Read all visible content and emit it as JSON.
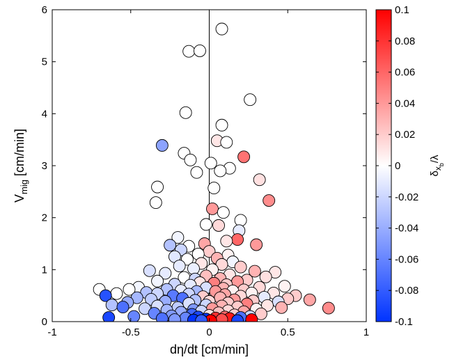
{
  "chart_data": {
    "type": "scatter",
    "title": "",
    "xlabel": "dη/dt [cm/min]",
    "ylabel_main": "V",
    "ylabel_sub": "mig",
    "ylabel_unit": " [cm/min]",
    "colorbar_label_main": "δ",
    "colorbar_label_sub": "x",
    "colorbar_label_subsub": "b",
    "colorbar_label_tail": "/λ",
    "xlim": [
      -1,
      1
    ],
    "ylim": [
      0,
      6
    ],
    "clim": [
      -0.1,
      0.1
    ],
    "xticks": [
      -1,
      -0.5,
      0,
      0.5,
      1
    ],
    "xtick_labels": [
      "-1",
      "-0.5",
      "0",
      "0.5",
      "1"
    ],
    "yticks": [
      0,
      1,
      2,
      3,
      4,
      5,
      6
    ],
    "ytick_labels": [
      "0",
      "1",
      "2",
      "3",
      "4",
      "5",
      "6"
    ],
    "cticks": [
      -0.1,
      -0.08,
      -0.06,
      -0.04,
      -0.02,
      0,
      0.02,
      0.04,
      0.06,
      0.08,
      0.1
    ],
    "ctick_labels": [
      "-0.1",
      "-0.08",
      "-0.06",
      "-0.04",
      "-0.02",
      "0",
      "0.02",
      "0.04",
      "0.06",
      "0.08",
      "0.1"
    ],
    "colormap": [
      "#0033ff",
      "#ffffff",
      "#ff0000"
    ],
    "vertical_line_x": 0,
    "grid": false,
    "points": [
      {
        "x": 0.08,
        "y": 5.63,
        "c": 0
      },
      {
        "x": -0.13,
        "y": 5.2,
        "c": 0
      },
      {
        "x": -0.06,
        "y": 5.21,
        "c": 0
      },
      {
        "x": 0.26,
        "y": 4.27,
        "c": 0
      },
      {
        "x": -0.15,
        "y": 4.02,
        "c": 0
      },
      {
        "x": 0.08,
        "y": 3.78,
        "c": 0
      },
      {
        "x": 0.05,
        "y": 3.48,
        "c": 0.01
      },
      {
        "x": 0.11,
        "y": 3.45,
        "c": 0
      },
      {
        "x": -0.3,
        "y": 3.39,
        "c": -0.045
      },
      {
        "x": -0.16,
        "y": 3.24,
        "c": 0
      },
      {
        "x": -0.12,
        "y": 3.11,
        "c": 0
      },
      {
        "x": 0.22,
        "y": 3.17,
        "c": 0.055
      },
      {
        "x": 0.01,
        "y": 3.05,
        "c": 0
      },
      {
        "x": 0.13,
        "y": 2.95,
        "c": 0
      },
      {
        "x": 0.07,
        "y": 2.9,
        "c": 0
      },
      {
        "x": -0.08,
        "y": 2.87,
        "c": 0
      },
      {
        "x": 0.32,
        "y": 2.73,
        "c": 0.012
      },
      {
        "x": -0.33,
        "y": 2.59,
        "c": 0
      },
      {
        "x": 0.03,
        "y": 2.57,
        "c": 0
      },
      {
        "x": 0.38,
        "y": 2.33,
        "c": 0.045
      },
      {
        "x": -0.34,
        "y": 2.29,
        "c": 0
      },
      {
        "x": 0.02,
        "y": 2.17,
        "c": 0.04
      },
      {
        "x": 0.09,
        "y": 2.1,
        "c": 0
      },
      {
        "x": 0.2,
        "y": 1.95,
        "c": 0
      },
      {
        "x": -0.02,
        "y": 1.87,
        "c": 0
      },
      {
        "x": 0.06,
        "y": 1.85,
        "c": 0.015
      },
      {
        "x": 0.19,
        "y": 1.75,
        "c": -0.01
      },
      {
        "x": -0.2,
        "y": 1.62,
        "c": -0.005
      },
      {
        "x": 0.18,
        "y": 1.58,
        "c": 0.06
      },
      {
        "x": 0.11,
        "y": 1.55,
        "c": 0.01
      },
      {
        "x": -0.03,
        "y": 1.5,
        "c": 0.035
      },
      {
        "x": 0.3,
        "y": 1.48,
        "c": 0.04
      },
      {
        "x": -0.25,
        "y": 1.47,
        "c": -0.03
      },
      {
        "x": -0.13,
        "y": 1.45,
        "c": 0
      },
      {
        "x": -0.18,
        "y": 1.38,
        "c": -0.02
      },
      {
        "x": 0.0,
        "y": 1.35,
        "c": 0.02
      },
      {
        "x": -0.07,
        "y": 1.3,
        "c": 0
      },
      {
        "x": 0.12,
        "y": 1.28,
        "c": 0.005
      },
      {
        "x": -0.22,
        "y": 1.25,
        "c": -0.012
      },
      {
        "x": 0.05,
        "y": 1.22,
        "c": 0.03
      },
      {
        "x": -0.14,
        "y": 1.2,
        "c": 0
      },
      {
        "x": 0.15,
        "y": 1.15,
        "c": -0.005
      },
      {
        "x": -0.05,
        "y": 1.12,
        "c": 0.01
      },
      {
        "x": 0.08,
        "y": 1.1,
        "c": 0.015
      },
      {
        "x": -0.19,
        "y": 1.07,
        "c": -0.01
      },
      {
        "x": 0.2,
        "y": 1.05,
        "c": 0.02
      },
      {
        "x": -0.1,
        "y": 1.02,
        "c": -0.008
      },
      {
        "x": 0.02,
        "y": 1.0,
        "c": 0.005
      },
      {
        "x": -0.38,
        "y": 0.98,
        "c": -0.015
      },
      {
        "x": 0.29,
        "y": 0.97,
        "c": 0.03
      },
      {
        "x": 0.42,
        "y": 0.95,
        "c": 0.01
      },
      {
        "x": -0.28,
        "y": 0.93,
        "c": -0.01
      },
      {
        "x": 0.13,
        "y": 0.9,
        "c": 0.01
      },
      {
        "x": -0.02,
        "y": 0.88,
        "c": 0.025
      },
      {
        "x": 0.36,
        "y": 0.86,
        "c": 0.012
      },
      {
        "x": -0.16,
        "y": 0.85,
        "c": 0
      },
      {
        "x": 0.07,
        "y": 0.83,
        "c": 0.03
      },
      {
        "x": -0.09,
        "y": 0.82,
        "c": -0.02
      },
      {
        "x": 0.24,
        "y": 0.8,
        "c": 0.02
      },
      {
        "x": -0.33,
        "y": 0.78,
        "c": -0.005
      },
      {
        "x": 0.18,
        "y": 0.77,
        "c": 0.04
      },
      {
        "x": -0.06,
        "y": 0.75,
        "c": 0.01
      },
      {
        "x": 0.03,
        "y": 0.74,
        "c": 0.05
      },
      {
        "x": -0.22,
        "y": 0.72,
        "c": -0.02
      },
      {
        "x": 0.11,
        "y": 0.71,
        "c": 0.02
      },
      {
        "x": -0.12,
        "y": 0.7,
        "c": -0.01
      },
      {
        "x": 0.48,
        "y": 0.68,
        "c": 0.005
      },
      {
        "x": -0.45,
        "y": 0.66,
        "c": -0.005
      },
      {
        "x": 0.32,
        "y": 0.66,
        "c": 0.015
      },
      {
        "x": -0.02,
        "y": 0.65,
        "c": -0.015
      },
      {
        "x": 0.09,
        "y": 0.64,
        "c": 0.03
      },
      {
        "x": -0.7,
        "y": 0.62,
        "c": 0
      },
      {
        "x": -0.51,
        "y": 0.62,
        "c": 0
      },
      {
        "x": -0.27,
        "y": 0.62,
        "c": -0.03
      },
      {
        "x": 0.22,
        "y": 0.61,
        "c": 0.02
      },
      {
        "x": -0.18,
        "y": 0.6,
        "c": -0.01
      },
      {
        "x": 0.15,
        "y": 0.59,
        "c": 0.005
      },
      {
        "x": -0.08,
        "y": 0.58,
        "c": -0.035
      },
      {
        "x": 0.04,
        "y": 0.58,
        "c": 0.04
      },
      {
        "x": -0.4,
        "y": 0.56,
        "c": -0.03
      },
      {
        "x": 0.41,
        "y": 0.55,
        "c": 0.01
      },
      {
        "x": 0.27,
        "y": 0.55,
        "c": 0.005
      },
      {
        "x": -0.59,
        "y": 0.54,
        "c": 0
      },
      {
        "x": -0.33,
        "y": 0.54,
        "c": -0.02
      },
      {
        "x": -0.13,
        "y": 0.53,
        "c": -0.02
      },
      {
        "x": 0.1,
        "y": 0.52,
        "c": 0.035
      },
      {
        "x": -0.66,
        "y": 0.5,
        "c": -0.085
      },
      {
        "x": 0.55,
        "y": 0.5,
        "c": 0.02
      },
      {
        "x": -0.23,
        "y": 0.5,
        "c": -0.065
      },
      {
        "x": 0.2,
        "y": 0.49,
        "c": 0.015
      },
      {
        "x": -0.04,
        "y": 0.48,
        "c": 0.02
      },
      {
        "x": 0.35,
        "y": 0.47,
        "c": -0.01
      },
      {
        "x": -0.46,
        "y": 0.46,
        "c": -0.035
      },
      {
        "x": 0.07,
        "y": 0.46,
        "c": 0.03
      },
      {
        "x": -0.17,
        "y": 0.45,
        "c": -0.07
      },
      {
        "x": 0.5,
        "y": 0.44,
        "c": 0.02
      },
      {
        "x": -0.37,
        "y": 0.43,
        "c": -0.025
      },
      {
        "x": 0.64,
        "y": 0.42,
        "c": 0.035
      },
      {
        "x": 0.16,
        "y": 0.42,
        "c": 0.04
      },
      {
        "x": -0.09,
        "y": 0.41,
        "c": -0.03
      },
      {
        "x": 0.28,
        "y": 0.4,
        "c": 0.02
      },
      {
        "x": -0.28,
        "y": 0.39,
        "c": -0.04
      },
      {
        "x": 0.0,
        "y": 0.39,
        "c": 0.015
      },
      {
        "x": 0.44,
        "y": 0.38,
        "c": -0.015
      },
      {
        "x": -0.52,
        "y": 0.37,
        "c": -0.04
      },
      {
        "x": 0.12,
        "y": 0.36,
        "c": 0.02
      },
      {
        "x": -0.13,
        "y": 0.35,
        "c": -0.015
      },
      {
        "x": 0.24,
        "y": 0.34,
        "c": 0.05
      },
      {
        "x": -0.62,
        "y": 0.32,
        "c": -0.03
      },
      {
        "x": -0.02,
        "y": 0.32,
        "c": -0.02
      },
      {
        "x": 0.37,
        "y": 0.31,
        "c": 0.01
      },
      {
        "x": -0.33,
        "y": 0.3,
        "c": -0.015
      },
      {
        "x": 0.08,
        "y": 0.3,
        "c": 0.03
      },
      {
        "x": -0.55,
        "y": 0.28,
        "c": -0.07
      },
      {
        "x": 0.18,
        "y": 0.28,
        "c": 0.02
      },
      {
        "x": -0.2,
        "y": 0.27,
        "c": -0.025
      },
      {
        "x": 0.46,
        "y": 0.27,
        "c": 0.03
      },
      {
        "x": 0.76,
        "y": 0.26,
        "c": 0.045
      },
      {
        "x": -0.41,
        "y": 0.25,
        "c": -0.02
      },
      {
        "x": 0.02,
        "y": 0.25,
        "c": 0.04
      },
      {
        "x": 0.3,
        "y": 0.24,
        "c": 0.005
      },
      {
        "x": -0.1,
        "y": 0.23,
        "c": -0.05
      },
      {
        "x": -0.27,
        "y": 0.22,
        "c": -0.035
      },
      {
        "x": 0.12,
        "y": 0.21,
        "c": 0.015
      },
      {
        "x": -0.05,
        "y": 0.2,
        "c": -0.02
      },
      {
        "x": 0.22,
        "y": 0.19,
        "c": 0.035
      },
      {
        "x": -0.18,
        "y": 0.18,
        "c": -0.04
      },
      {
        "x": 0.06,
        "y": 0.17,
        "c": 0.025
      },
      {
        "x": -0.35,
        "y": 0.16,
        "c": -0.06
      },
      {
        "x": 0.33,
        "y": 0.15,
        "c": 0.02
      },
      {
        "x": -0.11,
        "y": 0.14,
        "c": -0.075
      },
      {
        "x": 0.16,
        "y": 0.13,
        "c": 0.02
      },
      {
        "x": 0.0,
        "y": 0.12,
        "c": 0.01
      },
      {
        "x": -0.24,
        "y": 0.11,
        "c": -0.05
      },
      {
        "x": -0.48,
        "y": 0.1,
        "c": -0.06
      },
      {
        "x": 0.26,
        "y": 0.1,
        "c": -0.02
      },
      {
        "x": 0.1,
        "y": 0.09,
        "c": 0.06
      },
      {
        "x": -0.07,
        "y": 0.09,
        "c": -0.09
      },
      {
        "x": -0.64,
        "y": 0.08,
        "c": -0.09
      },
      {
        "x": 0.2,
        "y": 0.08,
        "c": -0.07
      },
      {
        "x": -0.15,
        "y": 0.07,
        "c": -0.06
      },
      {
        "x": 0.04,
        "y": 0.07,
        "c": 0.08
      },
      {
        "x": 0.13,
        "y": 0.06,
        "c": 0.09
      },
      {
        "x": -0.3,
        "y": 0.06,
        "c": -0.07
      },
      {
        "x": -0.02,
        "y": 0.05,
        "c": -0.1
      },
      {
        "x": 0.27,
        "y": 0.04,
        "c": 0.1
      },
      {
        "x": -0.22,
        "y": 0.04,
        "c": -0.05
      },
      {
        "x": 0.08,
        "y": 0.04,
        "c": 0.07
      },
      {
        "x": -0.1,
        "y": 0.03,
        "c": -0.1
      },
      {
        "x": 0.01,
        "y": 0.02,
        "c": 0.1
      },
      {
        "x": -0.05,
        "y": 0.02,
        "c": -0.08
      },
      {
        "x": 0.18,
        "y": 0.02,
        "c": -0.09
      }
    ]
  }
}
